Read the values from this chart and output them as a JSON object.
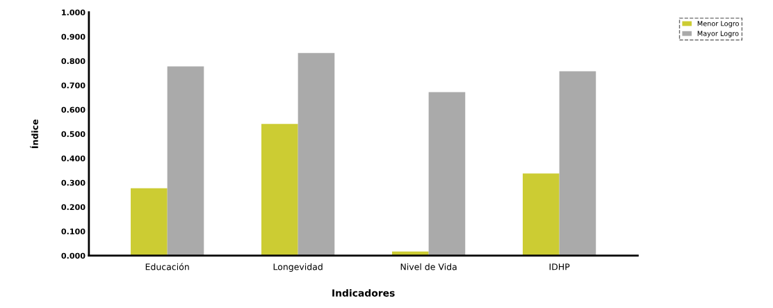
{
  "chart_data": {
    "type": "bar",
    "xlabel": "Indicadores",
    "ylabel": "Índice",
    "categories": [
      "Educación",
      "Longevidad",
      "Nivel de Vida",
      "IDHP"
    ],
    "series": [
      {
        "name": "Menor Logro",
        "color": "#cccc33",
        "values": [
          0.277,
          0.541,
          0.017,
          0.338
        ]
      },
      {
        "name": "Mayor Logro",
        "color": "#aaaaaa",
        "values": [
          0.778,
          0.833,
          0.672,
          0.758
        ]
      }
    ],
    "ylim": [
      0,
      1
    ],
    "yticks": [
      {
        "value": 0,
        "label": "0.000"
      },
      {
        "value": 0.1,
        "label": "0.100"
      },
      {
        "value": 0.2,
        "label": "0.200"
      },
      {
        "value": 0.3,
        "label": "0.300"
      },
      {
        "value": 0.4,
        "label": "0.400"
      },
      {
        "value": 0.5,
        "label": "0.500"
      },
      {
        "value": 0.6,
        "label": "0.600"
      },
      {
        "value": 0.7,
        "label": "0.700"
      },
      {
        "value": 0.8,
        "label": "0.800"
      },
      {
        "value": 0.9,
        "label": "0.900"
      },
      {
        "value": 1,
        "label": "1.000"
      }
    ],
    "grid": false,
    "legend": "top right"
  }
}
